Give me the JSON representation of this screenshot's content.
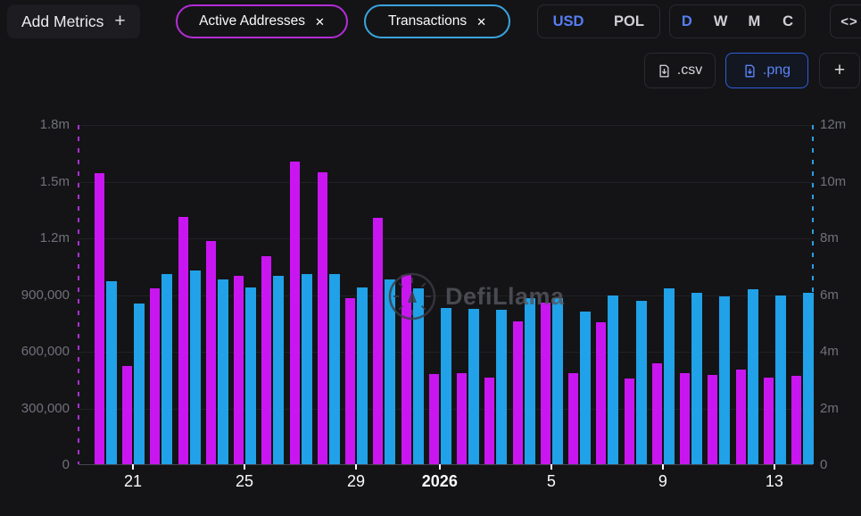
{
  "header": {
    "add_metrics_label": "Add Metrics",
    "add_metrics_plus": "+",
    "metric_pills": [
      {
        "label": "Active Addresses",
        "close": "✕",
        "color": "#b42cd6"
      },
      {
        "label": "Transactions",
        "close": "✕",
        "color": "#3aa4dd"
      }
    ],
    "currency_toggle": {
      "options": [
        "USD",
        "POL"
      ],
      "selected": "USD"
    },
    "interval_toggle": {
      "options": [
        "D",
        "W",
        "M",
        "C"
      ],
      "selected": "D"
    },
    "embed_icon": "<>"
  },
  "toolbar": {
    "csv_label": ".csv",
    "png_label": ".png",
    "add_label": "+"
  },
  "watermark": "DefiLlama",
  "chart_data": {
    "type": "bar",
    "x": [
      "20",
      "21",
      "22",
      "23",
      "24",
      "25",
      "26",
      "27",
      "28",
      "29",
      "30",
      "31",
      "1",
      "2",
      "3",
      "4",
      "5",
      "6",
      "7",
      "8",
      "9",
      "10",
      "11",
      "12",
      "13",
      "14"
    ],
    "series": [
      {
        "name": "Active Addresses",
        "axis": "left",
        "color": "#c916f0",
        "values": [
          1540000,
          520000,
          930000,
          1310000,
          1180000,
          995000,
          1100000,
          1600000,
          1545000,
          880000,
          1305000,
          1000000,
          478000,
          482000,
          460000,
          755000,
          855000,
          483000,
          750000,
          455000,
          533000,
          482000,
          472000,
          503000,
          457000,
          466000
        ]
      },
      {
        "name": "Transactions",
        "axis": "right",
        "color": "#20a1e8",
        "values": [
          6460000,
          5680000,
          6720000,
          6830000,
          6530000,
          6250000,
          6650000,
          6700000,
          6720000,
          6230000,
          6510000,
          6200000,
          5510000,
          5480000,
          5460000,
          5850000,
          5850000,
          5400000,
          5970000,
          5770000,
          6200000,
          6040000,
          5910000,
          6170000,
          5970000,
          6040000
        ]
      }
    ],
    "left_axis": {
      "ticks": [
        "1.8m",
        "1.5m",
        "1.2m",
        "900,000",
        "600,000",
        "300,000",
        "0"
      ],
      "max": 1800000,
      "min": 0
    },
    "right_axis": {
      "ticks": [
        "12m",
        "10m",
        "8m",
        "6m",
        "4m",
        "2m",
        "0"
      ],
      "max": 12000000,
      "min": 0
    },
    "x_ticks": [
      {
        "index": 1,
        "label": "21"
      },
      {
        "index": 5,
        "label": "25"
      },
      {
        "index": 9,
        "label": "29"
      },
      {
        "index": 12,
        "label": "2026",
        "bold": true
      },
      {
        "index": 16,
        "label": "5"
      },
      {
        "index": 20,
        "label": "9"
      },
      {
        "index": 24,
        "label": "13"
      }
    ],
    "grid": true,
    "legend_position": "none"
  }
}
